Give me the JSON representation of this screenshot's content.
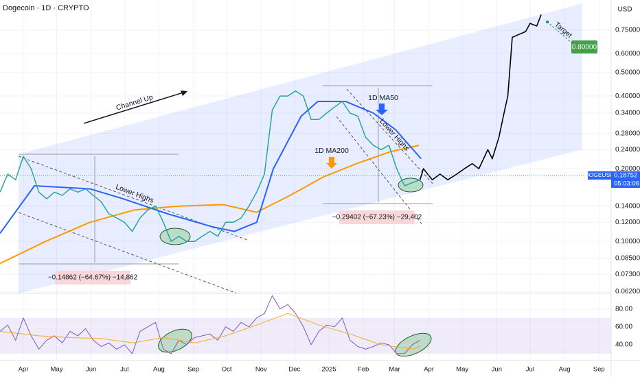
{
  "header": {
    "title": "Dogecoin · 1D · CRYPTO",
    "currency": "USD",
    "symbol": "DOGEUSD",
    "countdown": "05:03:06"
  },
  "annotations": {
    "channel": "Channel Up",
    "lower_highs_1": "Lower Highs",
    "lower_highs_2": "Lower Highs",
    "ma200": "1D MA200",
    "ma50": "1D MA50",
    "target": "Target",
    "target_price": "0.80000",
    "drop_1": "−0.14862 (−64.67%) −14,862",
    "drop_2": "−0.29402 (−67.23%) −29,402"
  },
  "chart_data": [
    {
      "type": "line",
      "log": true,
      "grid": true,
      "xlim": [
        -21,
        529
      ],
      "xticks": [
        {
          "value": 0,
          "label": "Apr"
        },
        {
          "value": 30,
          "label": "May"
        },
        {
          "value": 61,
          "label": "Jun"
        },
        {
          "value": 91,
          "label": "Jul"
        },
        {
          "value": 122,
          "label": "Aug"
        },
        {
          "value": 153,
          "label": "Sep"
        },
        {
          "value": 183,
          "label": "Oct"
        },
        {
          "value": 214,
          "label": "Nov"
        },
        {
          "value": 244,
          "label": "Dec"
        },
        {
          "value": 275,
          "label": "2025"
        },
        {
          "value": 306,
          "label": "Feb"
        },
        {
          "value": 334,
          "label": "Mar"
        },
        {
          "value": 365,
          "label": "Apr"
        },
        {
          "value": 395,
          "label": "May"
        },
        {
          "value": 426,
          "label": "Jun"
        },
        {
          "value": 456,
          "label": "Jul"
        },
        {
          "value": 487,
          "label": "Aug"
        },
        {
          "value": 518,
          "label": "Sep"
        }
      ],
      "ylim": [
        0.0609,
        1.0
      ],
      "yticks": [
        {
          "value": 0.75,
          "label": "0.75000"
        },
        {
          "value": 0.6,
          "label": "0.60000"
        },
        {
          "value": 0.5,
          "label": "0.50000"
        },
        {
          "value": 0.4,
          "label": "0.40000"
        },
        {
          "value": 0.34,
          "label": "0.34000"
        },
        {
          "value": 0.28,
          "label": "0.28000"
        },
        {
          "value": 0.24,
          "label": "0.24000"
        },
        {
          "value": 0.2,
          "label": "0.20000"
        },
        {
          "value": 0.14,
          "label": "0.14000"
        },
        {
          "value": 0.12,
          "label": "0.12000"
        },
        {
          "value": 0.1,
          "label": "0.10000"
        },
        {
          "value": 0.085,
          "label": "0.08500"
        },
        {
          "value": 0.073,
          "label": "0.07300"
        },
        {
          "value": 0.062,
          "label": "0.06200"
        }
      ],
      "last_price": {
        "value": 0.18752,
        "label": "0.18752"
      },
      "series": [
        {
          "color": "#ff9800",
          "width": 2,
          "x": [
            -21,
            20,
            60,
            100,
            140,
            180,
            210,
            240,
            270,
            300,
            330,
            356
          ],
          "values": [
            0.081,
            0.1,
            0.12,
            0.135,
            0.14,
            0.142,
            0.132,
            0.155,
            0.185,
            0.21,
            0.235,
            0.25
          ]
        },
        {
          "color": "#2962ff",
          "width": 2,
          "x": [
            -21,
            10,
            60,
            90,
            130,
            170,
            190,
            210,
            225,
            250,
            265,
            290,
            315,
            335,
            358
          ],
          "values": [
            0.108,
            0.17,
            0.165,
            0.15,
            0.13,
            0.115,
            0.11,
            0.12,
            0.2,
            0.33,
            0.38,
            0.38,
            0.34,
            0.29,
            0.22
          ]
        },
        {
          "color": "#26a69a",
          "width": 1.5,
          "x": [
            -21,
            -14,
            -7,
            0,
            7,
            14,
            21,
            28,
            35,
            42,
            49,
            56,
            63,
            70,
            77,
            84,
            91,
            98,
            105,
            112,
            119,
            126,
            133,
            140,
            147,
            154,
            161,
            168,
            175,
            182,
            189,
            196,
            203,
            210,
            217,
            224,
            231,
            238,
            245,
            252,
            259,
            266,
            273,
            280,
            287,
            294,
            301,
            308,
            315,
            322,
            329,
            336,
            343,
            350,
            357
          ],
          "values": [
            0.16,
            0.19,
            0.18,
            0.225,
            0.2,
            0.16,
            0.15,
            0.16,
            0.155,
            0.165,
            0.16,
            0.165,
            0.155,
            0.146,
            0.13,
            0.125,
            0.12,
            0.11,
            0.125,
            0.135,
            0.14,
            0.12,
            0.1,
            0.105,
            0.1,
            0.1,
            0.105,
            0.11,
            0.105,
            0.12,
            0.12,
            0.125,
            0.14,
            0.16,
            0.19,
            0.35,
            0.4,
            0.4,
            0.42,
            0.4,
            0.32,
            0.32,
            0.34,
            0.36,
            0.38,
            0.34,
            0.33,
            0.27,
            0.25,
            0.24,
            0.25,
            0.2,
            0.17,
            0.175,
            0.18
          ]
        },
        {
          "color": "#000000",
          "width": 1.6,
          "x": [
            357,
            360,
            368,
            375,
            382,
            390,
            397,
            404,
            410,
            418,
            422,
            428,
            432,
            436,
            440,
            446,
            452,
            456,
            462,
            466
          ],
          "values": [
            0.18,
            0.2,
            0.18,
            0.19,
            0.18,
            0.19,
            0.2,
            0.21,
            0.2,
            0.24,
            0.22,
            0.27,
            0.33,
            0.4,
            0.7,
            0.72,
            0.74,
            0.8,
            0.78,
            0.87
          ]
        }
      ]
    },
    {
      "type": "line",
      "log": false,
      "grid": true,
      "xlim": [
        -21,
        529
      ],
      "ylim": [
        23,
        96
      ],
      "yticks": [
        {
          "value": 80,
          "label": "80.00"
        },
        {
          "value": 60,
          "label": "60.00"
        },
        {
          "value": 40,
          "label": "40.00"
        }
      ],
      "band": [
        30,
        70
      ],
      "series": [
        {
          "color": "#7e57c2",
          "width": 1,
          "x": [
            -21,
            -14,
            -7,
            0,
            7,
            14,
            21,
            28,
            35,
            42,
            49,
            56,
            63,
            70,
            77,
            84,
            91,
            98,
            105,
            112,
            119,
            126,
            133,
            140,
            147,
            154,
            161,
            168,
            175,
            182,
            189,
            196,
            203,
            210,
            217,
            224,
            231,
            238,
            245,
            252,
            259,
            266,
            273,
            280,
            287,
            294,
            301,
            308,
            315,
            322,
            329,
            336,
            343,
            350,
            357
          ],
          "values": [
            55,
            62,
            45,
            70,
            50,
            35,
            45,
            50,
            42,
            55,
            50,
            58,
            45,
            38,
            42,
            35,
            40,
            30,
            55,
            60,
            65,
            35,
            30,
            45,
            40,
            48,
            50,
            52,
            45,
            60,
            55,
            65,
            60,
            70,
            75,
            95,
            80,
            85,
            75,
            60,
            40,
            55,
            62,
            60,
            70,
            45,
            38,
            35,
            38,
            42,
            40,
            30,
            30,
            40,
            45
          ]
        },
        {
          "color": "#f9a825",
          "width": 1,
          "x": [
            -21,
            14,
            42,
            70,
            98,
            126,
            154,
            182,
            210,
            238,
            266,
            294,
            322,
            350,
            357
          ],
          "values": [
            55,
            50,
            48,
            47,
            42,
            48,
            42,
            50,
            62,
            75,
            62,
            52,
            40,
            35,
            38
          ]
        }
      ]
    }
  ]
}
